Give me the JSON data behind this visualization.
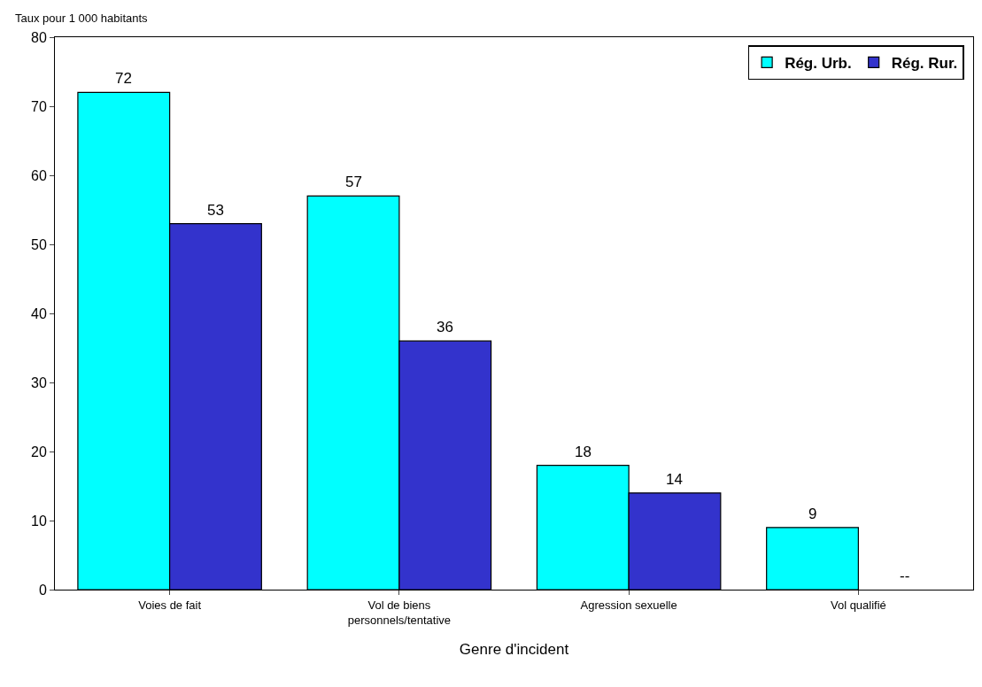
{
  "chart_data": {
    "type": "bar",
    "ylabel": "Taux pour 1 000 habitants",
    "xlabel": "Genre d'incident",
    "categories": [
      "Voies de fait",
      "Vol de biens\npersonnels/tentative",
      "Agression sexuelle",
      "Vol qualifié"
    ],
    "series": [
      {
        "name": "Rég. Urb.",
        "color": "#00ffff",
        "values": [
          72,
          57,
          18,
          9
        ],
        "value_labels": [
          "72",
          "57",
          "18",
          "9"
        ]
      },
      {
        "name": "Rég. Rur.",
        "color": "#3333cc",
        "values": [
          53,
          36,
          14,
          null
        ],
        "value_labels": [
          "53",
          "36",
          "14",
          "--"
        ]
      }
    ],
    "ylim": [
      0,
      80
    ],
    "yticks": [
      0,
      10,
      20,
      30,
      40,
      50,
      60,
      70,
      80
    ],
    "grid": false,
    "legend": "top right"
  }
}
